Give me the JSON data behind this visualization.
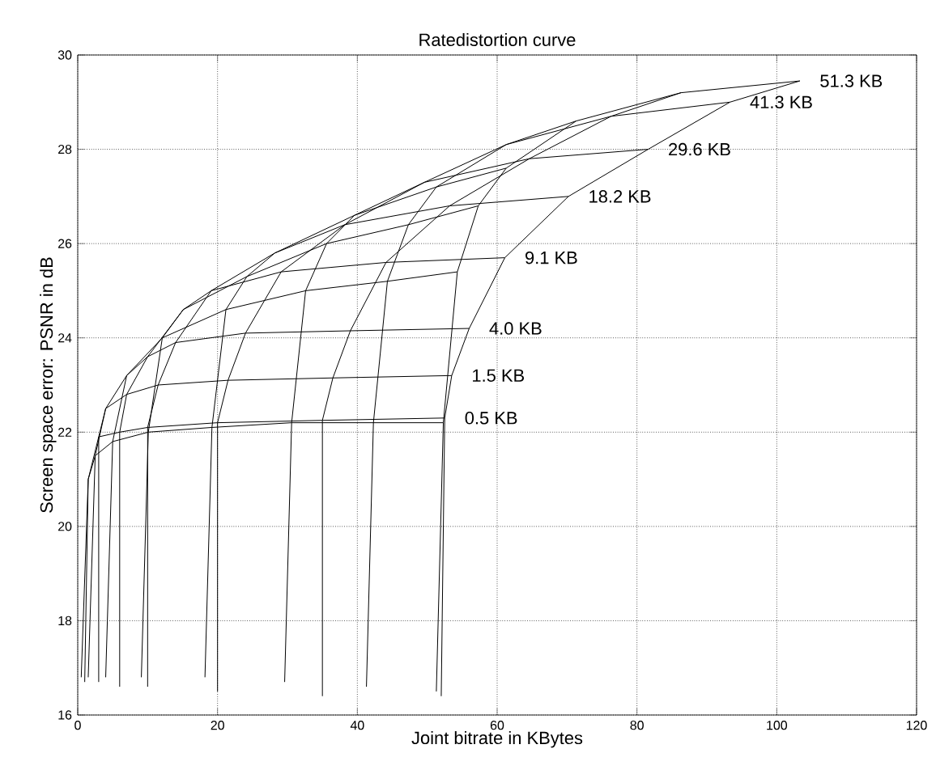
{
  "chart_data": {
    "type": "line",
    "title": "Ratedistortion curve",
    "xlabel": "Joint bitrate in KBytes",
    "ylabel": "Screen space error: PSNR in dB",
    "xlim": [
      0,
      120
    ],
    "ylim": [
      16,
      30
    ],
    "xticks": [
      0,
      20,
      40,
      60,
      80,
      100,
      120
    ],
    "yticks": [
      16,
      18,
      20,
      22,
      24,
      26,
      28,
      30
    ],
    "grid": true,
    "marker": "none",
    "line_style": "solid",
    "series": [
      {
        "name": "0.5 KB",
        "color": "#000000",
        "x": [
          0.5,
          1.5,
          3,
          6,
          10,
          20,
          35,
          52.5
        ],
        "values": [
          16.8,
          21,
          21.9,
          22.0,
          22.1,
          22.2,
          22.25,
          22.3
        ]
      },
      {
        "name": "1.5 KB",
        "color": "#000000",
        "x": [
          1.5,
          2.5,
          4,
          7,
          11.5,
          21.5,
          36.5,
          53.5
        ],
        "values": [
          16.8,
          21.5,
          22.5,
          22.8,
          23.0,
          23.1,
          23.15,
          23.2
        ]
      },
      {
        "name": "4.0 KB",
        "color": "#000000",
        "x": [
          4,
          5,
          7,
          10,
          14,
          24,
          39,
          56
        ],
        "values": [
          16.8,
          21.8,
          23.2,
          23.6,
          23.9,
          24.1,
          24.15,
          24.2
        ]
      },
      {
        "name": "9.1 KB",
        "color": "#000000",
        "x": [
          9.1,
          10.1,
          12.1,
          15.1,
          19.1,
          29.1,
          44.1,
          61.1
        ],
        "values": [
          16.8,
          22,
          24,
          24.6,
          25.0,
          25.4,
          25.6,
          25.7
        ]
      },
      {
        "name": "18.2 KB",
        "color": "#000000",
        "x": [
          18.2,
          19.2,
          21.2,
          24.2,
          28.2,
          38.2,
          53.2,
          70.2
        ],
        "values": [
          16.8,
          22.1,
          24.6,
          25.3,
          25.8,
          26.4,
          26.8,
          27.0
        ]
      },
      {
        "name": "29.6 KB",
        "color": "#000000",
        "x": [
          29.6,
          30.6,
          32.6,
          35.6,
          39.6,
          49.6,
          64.6,
          81.6
        ],
        "values": [
          16.7,
          22.2,
          25,
          26,
          26.6,
          27.3,
          27.8,
          28.0
        ]
      },
      {
        "name": "41.3 KB",
        "color": "#000000",
        "x": [
          41.3,
          42.3,
          44.3,
          47.3,
          51.3,
          61.3,
          76.3,
          93.3
        ],
        "values": [
          16.6,
          22.2,
          25.2,
          26.4,
          27.2,
          28.1,
          28.7,
          29.0
        ]
      },
      {
        "name": "51.3 KB",
        "color": "#000000",
        "x": [
          51.3,
          52.3,
          54.3,
          57.3,
          61.3,
          71.3,
          86.3,
          103.3
        ],
        "values": [
          16.5,
          22.2,
          25.4,
          26.8,
          27.6,
          28.6,
          29.2,
          29.45
        ]
      },
      {
        "color": "#000000",
        "x": [
          1,
          1.5,
          2.5,
          5,
          10.1,
          19.2,
          30.6,
          42.3,
          52.3
        ],
        "values": [
          16.7,
          21,
          21.5,
          21.8,
          22,
          22.1,
          22.2,
          22.2,
          22.2
        ]
      },
      {
        "color": "#000000",
        "x": [
          3,
          3,
          4,
          7,
          12.1,
          21.2,
          32.6,
          44.3,
          54.3
        ],
        "values": [
          16.7,
          21.9,
          22.5,
          23.2,
          24,
          24.6,
          25,
          25.2,
          25.4
        ]
      },
      {
        "color": "#000000",
        "x": [
          6,
          6,
          7,
          10,
          15.1,
          24.2,
          35.6,
          47.3,
          57.3
        ],
        "values": [
          16.6,
          22.0,
          22.8,
          23.6,
          24.6,
          25.3,
          26,
          26.4,
          26.8
        ]
      },
      {
        "color": "#000000",
        "x": [
          10,
          10,
          11.5,
          14,
          19.1,
          28.2,
          39.6,
          51.3,
          61.3
        ],
        "values": [
          16.6,
          22.1,
          23.0,
          23.9,
          25.0,
          25.8,
          26.6,
          27.2,
          27.6
        ]
      },
      {
        "color": "#000000",
        "x": [
          20,
          20,
          21.5,
          24,
          29.1,
          38.2,
          49.6,
          61.3,
          71.3
        ],
        "values": [
          16.5,
          22.2,
          23.1,
          24.1,
          25.4,
          26.4,
          27.3,
          28.1,
          28.6
        ]
      },
      {
        "color": "#000000",
        "x": [
          35,
          35,
          36.5,
          39,
          44.1,
          53.2,
          64.6,
          76.3,
          86.3
        ],
        "values": [
          16.4,
          22.25,
          23.15,
          24.15,
          25.6,
          26.8,
          27.8,
          28.7,
          29.2
        ]
      },
      {
        "color": "#000000",
        "x": [
          52,
          52.5,
          53.5,
          56,
          61.1,
          70.2,
          81.6,
          93.3,
          103.3
        ],
        "values": [
          16.4,
          22.3,
          23.2,
          24.2,
          25.7,
          27.0,
          28.0,
          29.0,
          29.45
        ]
      }
    ]
  }
}
